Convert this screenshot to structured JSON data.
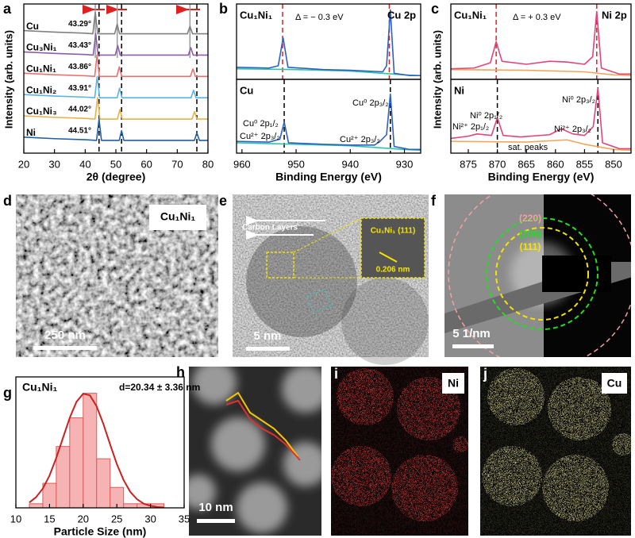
{
  "panel_labels": [
    "a",
    "b",
    "c",
    "d",
    "e",
    "f",
    "g",
    "h",
    "i",
    "j"
  ],
  "chart_data": [
    {
      "type": "line",
      "xlabel": "2θ (degree)",
      "ylabel": "Intensity (arb. units)",
      "xlim": [
        20,
        80
      ],
      "xticks": [
        20,
        30,
        40,
        50,
        60,
        70,
        80
      ],
      "ylim": [
        0,
        7
      ],
      "solid_lines": [
        43.29,
        50.43,
        74.13
      ],
      "solid_color": "#9a9a9a",
      "dashed_lines": [
        44.51,
        51.85,
        76.38
      ],
      "dashed_color": "#000000",
      "series": [
        {
          "name": "Cu",
          "color": "#808080",
          "x": [
            20,
            30,
            40,
            42.5,
            43.29,
            44.1,
            49.6,
            50.43,
            51.2,
            65,
            73.3,
            74.13,
            75,
            80
          ],
          "values": [
            5.75,
            5.68,
            5.63,
            5.6,
            6.6,
            5.6,
            5.6,
            6.05,
            5.6,
            5.6,
            5.6,
            5.95,
            5.6,
            5.6
          ]
        },
        {
          "name": "Cu₃Ni₁",
          "color": "#8e5fa8",
          "x": [
            20,
            30,
            40,
            42.6,
            43.43,
            44.2,
            49.8,
            50.6,
            51.4,
            65,
            73.6,
            74.4,
            75.2,
            80
          ],
          "values": [
            4.75,
            4.68,
            4.63,
            4.6,
            5.6,
            4.6,
            4.6,
            5.05,
            4.6,
            4.6,
            4.6,
            4.95,
            4.6,
            4.6
          ]
        },
        {
          "name": "Cu₁Ni₁",
          "color": "#e8716f",
          "x": [
            20,
            30,
            40,
            43.1,
            43.86,
            44.6,
            50.3,
            51.1,
            51.9,
            65,
            74.3,
            75.1,
            75.9,
            80
          ],
          "values": [
            3.75,
            3.68,
            3.63,
            3.6,
            4.6,
            3.6,
            3.6,
            4.05,
            3.6,
            3.6,
            3.6,
            3.95,
            3.6,
            3.6
          ]
        },
        {
          "name": "Cu₁Ni₂",
          "color": "#5ab4e5",
          "x": [
            20,
            30,
            40,
            43.1,
            43.91,
            44.7,
            50.4,
            51.2,
            52,
            65,
            74.5,
            75.3,
            76.1,
            80
          ],
          "values": [
            2.75,
            2.68,
            2.63,
            2.6,
            3.6,
            2.6,
            2.6,
            3.05,
            2.6,
            2.6,
            2.6,
            2.95,
            2.6,
            2.6
          ]
        },
        {
          "name": "Cu₁Ni₃",
          "color": "#e8b24a",
          "x": [
            20,
            30,
            40,
            43.2,
            44.02,
            44.8,
            50.5,
            51.3,
            52.1,
            65,
            74.8,
            75.6,
            76.4,
            80
          ],
          "values": [
            1.75,
            1.68,
            1.63,
            1.6,
            2.6,
            1.6,
            1.6,
            2.05,
            1.6,
            1.6,
            1.6,
            1.95,
            1.6,
            1.6
          ]
        },
        {
          "name": "Ni",
          "color": "#1f5fa6",
          "x": [
            20,
            30,
            40,
            43.7,
            44.51,
            45.3,
            51.1,
            51.85,
            52.6,
            65,
            75.6,
            76.38,
            77.2,
            80
          ],
          "values": [
            0.75,
            0.68,
            0.63,
            0.6,
            1.6,
            0.6,
            0.6,
            1.05,
            0.6,
            0.6,
            0.6,
            0.95,
            0.6,
            0.6
          ]
        }
      ],
      "annotations": [
        "43.29°",
        "43.43°",
        "43.86°",
        "43.91°",
        "44.02°",
        "44.51°"
      ]
    },
    {
      "type": "line",
      "xlim": [
        961,
        927
      ],
      "ylim": [
        0,
        10
      ],
      "dashed_lines": [
        952.5,
        932.8
      ],
      "dashed_color": "#e02020",
      "series": [
        {
          "color": "#2fc4a8",
          "x": [
            961,
            950,
            940,
            930,
            927
          ],
          "values": [
            1.4,
            1.3,
            1.1,
            0.6,
            0.5
          ]
        },
        {
          "color": "#2f5fc4",
          "x": [
            961,
            955,
            953.3,
            952.4,
            951.5,
            945,
            940,
            934,
            933.3,
            932.6,
            931.9,
            929,
            927
          ],
          "values": [
            1.6,
            1.5,
            1.8,
            5.5,
            1.6,
            1.3,
            1.2,
            1.0,
            1.8,
            9.2,
            0.8,
            0.5,
            0.5
          ]
        }
      ],
      "labels": [
        "Cu₁Ni₁",
        "Δ = − 0.3 eV",
        "Cu 2p"
      ]
    },
    {
      "type": "line",
      "xlabel": "Binding Energy (eV)",
      "xlim": [
        961,
        927
      ],
      "xticks": [
        960,
        950,
        940,
        930
      ],
      "ylim": [
        0,
        10
      ],
      "dashed_lines": [
        952.2,
        932.6
      ],
      "dashed_color": "#000000",
      "series": [
        {
          "color": "#2fc4a8",
          "x": [
            961,
            950,
            940,
            930,
            927
          ],
          "values": [
            1.4,
            1.2,
            1.0,
            0.5,
            0.4
          ]
        },
        {
          "color": "#2f5fc4",
          "x": [
            961,
            955,
            953,
            952.2,
            951.4,
            945,
            940,
            935.5,
            934.5,
            933.3,
            932.6,
            931.9,
            929,
            927
          ],
          "values": [
            1.6,
            1.5,
            1.9,
            4.2,
            1.4,
            1.2,
            1.1,
            1.1,
            1.6,
            2.5,
            8.0,
            0.9,
            0.5,
            0.5
          ]
        }
      ],
      "labels": [
        "Cu",
        "Cu⁰ 2p₁/₂",
        "Cu²⁺ 2p₃/₂",
        "Cu⁰ 2p₃/₂",
        "Cu²⁺ 2p₃/₂"
      ]
    },
    {
      "type": "line",
      "xlim": [
        878,
        847
      ],
      "ylim": [
        0,
        10
      ],
      "dashed_lines": [
        870.2,
        852.9
      ],
      "dashed_color": "#e02020",
      "series": [
        {
          "color": "#f2a65a",
          "x": [
            878,
            865,
            855,
            850,
            847
          ],
          "values": [
            1.3,
            1.2,
            1.0,
            0.6,
            0.5
          ]
        },
        {
          "color": "#e0457b",
          "x": [
            878,
            874,
            871.2,
            870.2,
            869.2,
            865,
            861,
            858,
            855,
            853.6,
            852.9,
            852.1,
            849,
            847
          ],
          "values": [
            1.4,
            1.5,
            2.2,
            5.0,
            2.4,
            2.0,
            2.4,
            2.3,
            2.0,
            3.0,
            9.0,
            1.5,
            0.7,
            0.7
          ]
        }
      ],
      "labels": [
        "Cu₁Ni₁",
        "Δ = + 0.3 eV",
        "Ni 2p"
      ]
    },
    {
      "type": "line",
      "xlabel": "Binding Energy (eV)",
      "ylabel": "Intensity (arb. units)",
      "xlim": [
        878,
        847
      ],
      "xticks": [
        875,
        870,
        865,
        860,
        855,
        850
      ],
      "ylim": [
        0,
        10
      ],
      "dashed_lines": [
        870.0,
        852.7
      ],
      "dashed_color": "#000000",
      "series": [
        {
          "color": "#f2a65a",
          "x": [
            878,
            865,
            858,
            855,
            850,
            847
          ],
          "values": [
            1.6,
            1.5,
            1.8,
            1.2,
            0.5,
            0.4
          ]
        },
        {
          "color": "#e0457b",
          "x": [
            878,
            875,
            873.5,
            871,
            870,
            869,
            866,
            861,
            859,
            857,
            855,
            853.5,
            852.7,
            851.9,
            849,
            847
          ],
          "values": [
            2.0,
            2.3,
            2.6,
            2.4,
            4.8,
            2.4,
            2.2,
            2.5,
            3.3,
            2.6,
            2.4,
            3.6,
            8.8,
            1.4,
            0.6,
            0.6
          ]
        }
      ],
      "labels": [
        "Ni",
        "Ni⁰ 2p₁/₂",
        "Ni²⁺ 2p₁/₂",
        "Ni⁰ 2p₃/₂",
        "Ni²⁺ 2p₃/₂",
        "sat. peaks"
      ]
    },
    {
      "type": "histogram",
      "title": "Cu₁Ni₁",
      "annotation": "d=20.34 ± 3.36 nm",
      "xlabel": "Particle Size (nm)",
      "xlim": [
        10,
        35
      ],
      "xticks": [
        10,
        15,
        20,
        25,
        30,
        35
      ],
      "ylim": [
        0,
        32
      ],
      "bins": [
        12,
        14,
        16,
        18,
        20,
        22,
        24,
        26,
        28,
        30,
        32
      ],
      "counts": [
        1,
        6,
        15,
        22,
        28,
        12,
        5,
        1,
        1,
        1
      ],
      "color": "#f6b3b3",
      "edge_color": "#e05a5a",
      "fit": {
        "color": "#cc1f1f",
        "x": [
          12,
          13,
          14,
          15,
          16,
          17,
          18,
          19,
          20,
          21,
          22,
          23,
          24,
          25,
          26,
          27,
          28,
          29,
          30,
          31,
          32
        ],
        "values": [
          1.3,
          2.6,
          4.7,
          7.9,
          12.2,
          17.1,
          22.0,
          25.9,
          27.9,
          27.5,
          24.8,
          20.5,
          15.5,
          10.7,
          6.8,
          3.9,
          2.1,
          1.0,
          0.5,
          0.2,
          0.1
        ]
      }
    }
  ],
  "images": {
    "d": {
      "label": "Cu₁Ni₁",
      "scale_bar": "250 nm"
    },
    "e": {
      "carbon": "Carbon Layers",
      "inset_label": "Cu₁Ni₁ (111)",
      "spacing": "0.206 nm",
      "scale_bar": "5 nm"
    },
    "f": {
      "rings": [
        "(220)",
        "(200)",
        "(111)"
      ],
      "scale_bar": "5 1/nm"
    },
    "h": {
      "scale_bar": "10 nm"
    },
    "i": {
      "label": "Ni"
    },
    "j": {
      "label": "Cu"
    }
  }
}
